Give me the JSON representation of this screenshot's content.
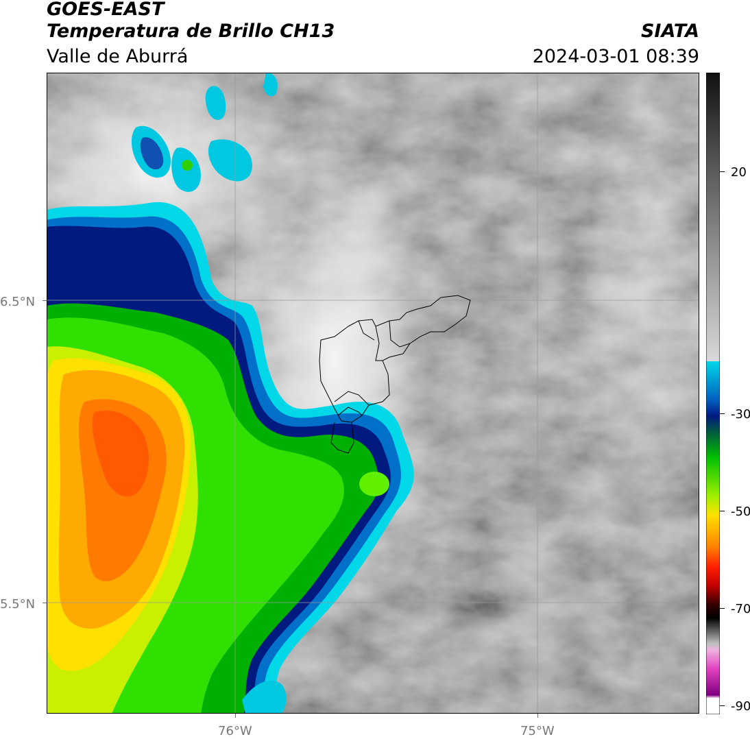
{
  "header": {
    "satellite": "GOES-EAST",
    "product": "Temperatura de Brillo CH13",
    "region": "Valle de Aburrá",
    "organization": "SIATA",
    "datetime": "2024-03-01 08:39"
  },
  "map": {
    "lat_labels": [
      "6.5°N",
      "5.5°N"
    ],
    "lon_labels": [
      "76°W",
      "75°W"
    ],
    "grid": true,
    "boundaries": "Valle de Aburrá municipalities"
  },
  "colorbar": {
    "tick_labels": [
      "20",
      "-30",
      "-50",
      "-70",
      "-90"
    ],
    "colors": {
      "warm_gray_top": "#1a1a1a",
      "gray_mid": "#9a9a9a",
      "white": "#f2f2f2",
      "cyan": "#00d8e8",
      "blue": "#0050b0",
      "navy": "#001a80",
      "green": "#00c000",
      "yellow": "#ffe000",
      "orange": "#ff7a00",
      "red": "#e00000",
      "black": "#000000",
      "magenta": "#e040c0",
      "purple": "#800080"
    }
  }
}
